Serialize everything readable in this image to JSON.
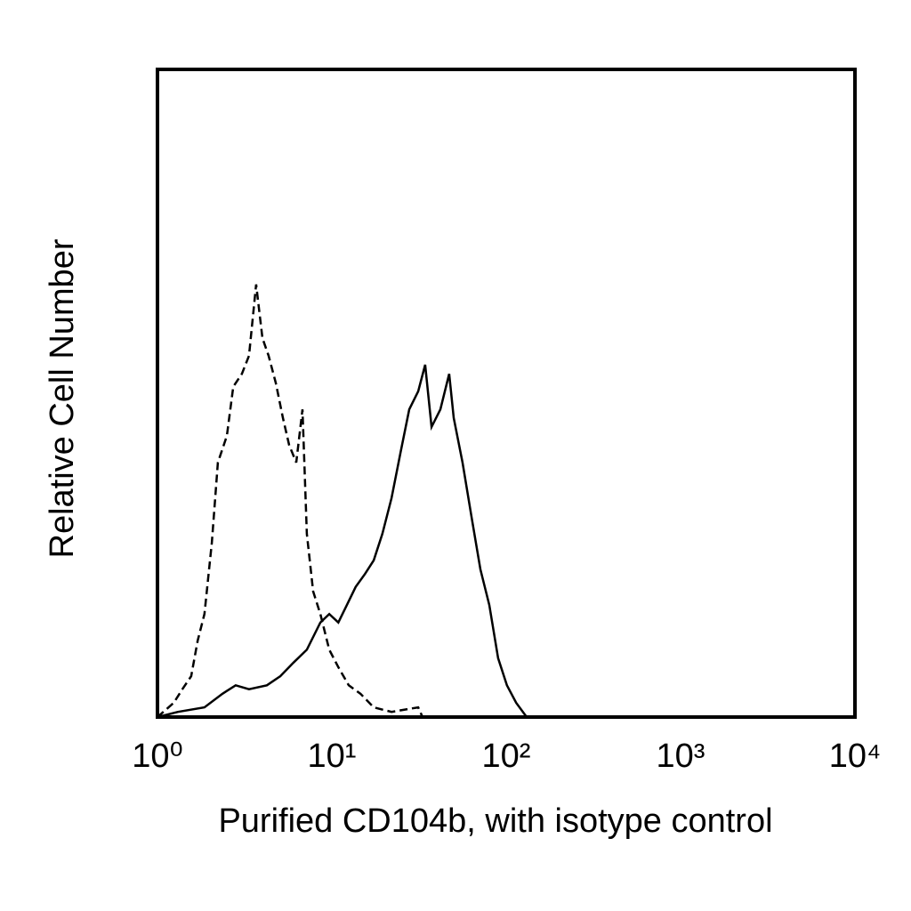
{
  "chart_data": {
    "type": "line",
    "xlabel": "Purified CD104b, with isotype control",
    "ylabel": "Relative Cell Number",
    "xscale": "log",
    "xlim": [
      1,
      10000
    ],
    "ylim": [
      0,
      100
    ],
    "xticks": [
      {
        "value": 1,
        "label": "10⁰"
      },
      {
        "value": 10,
        "label": "10¹"
      },
      {
        "value": 100,
        "label": "10²"
      },
      {
        "value": 1000,
        "label": "10³"
      },
      {
        "value": 10000,
        "label": "10⁴"
      }
    ],
    "grid": false,
    "series": [
      {
        "color": "#000000",
        "style": "dashed",
        "x": [
          1,
          1.24,
          1.39,
          1.56,
          1.7,
          1.86,
          2.05,
          2.22,
          2.5,
          2.72,
          3.05,
          3.35,
          3.68,
          4.0,
          4.34,
          4.77,
          5.24,
          5.69,
          6.25,
          6.79,
          7.19,
          7.81,
          8.59,
          9.66,
          10.9,
          12.5,
          14.6,
          17.4,
          22.0,
          31.3,
          33.1
        ],
        "values": [
          0,
          2.2,
          4.3,
          6.3,
          11.8,
          15.9,
          26.9,
          39.3,
          43.4,
          51.0,
          53.0,
          55.8,
          66.8,
          58.5,
          55.8,
          51.6,
          46.2,
          42.0,
          39.3,
          47.5,
          28.3,
          19.4,
          15.9,
          10.4,
          7.7,
          4.9,
          3.6,
          1.5,
          0.8,
          1.5,
          0
        ]
      },
      {
        "color": "#000000",
        "style": "solid",
        "x": [
          1,
          1.31,
          1.86,
          2.36,
          2.81,
          3.35,
          4.24,
          5.06,
          6.03,
          7.19,
          8.59,
          9.66,
          10.9,
          12.2,
          13.7,
          15.5,
          17.4,
          19.5,
          22.0,
          24.7,
          27.8,
          31.3,
          34.3,
          37.3,
          41.9,
          47.1,
          50.0,
          56.2,
          63.2,
          71.1,
          80.0,
          89.9,
          101,
          114,
          131
        ],
        "values": [
          0,
          0.8,
          1.5,
          3.6,
          4.9,
          4.3,
          4.9,
          6.3,
          8.4,
          10.4,
          14.6,
          15.9,
          14.6,
          17.3,
          20.1,
          22.1,
          24.2,
          28.3,
          33.8,
          40.7,
          47.5,
          50.3,
          54.4,
          44.8,
          47.5,
          53.0,
          46.2,
          39.3,
          31.0,
          22.8,
          17.3,
          9.1,
          4.9,
          2.2,
          0
        ]
      }
    ]
  }
}
